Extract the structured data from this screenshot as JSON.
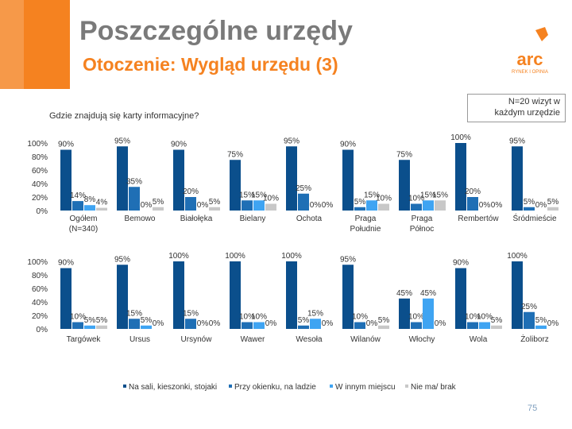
{
  "header": {
    "title": "Poszczególne urzędy",
    "subtitle": "Otoczenie: Wygląd urzędu (3)",
    "logo_text": "arc",
    "logo_subtext": "RYNEK I OPINIA"
  },
  "note": {
    "line1": "N=20 wizyt w",
    "line2": "każdym urzędzie"
  },
  "question": "Gdzie znajdują się karty informacyjne?",
  "page_number": "75",
  "colors": {
    "header_gray": "#7a7a7a",
    "orange": "#f58220",
    "dark_blue": "#0b4f8c",
    "medium_blue": "#1f6fb5",
    "light_blue": "#3fa4f2",
    "gray_bar": "#c8c8c8"
  },
  "chart_data": {
    "type": "bar",
    "yticks": [
      "100%",
      "80%",
      "60%",
      "40%",
      "20%",
      "0%"
    ],
    "ylim": [
      0,
      100
    ],
    "series": [
      {
        "name": "Na sali, kieszonki, stojaki"
      },
      {
        "name": "Przy okienku, na ladzie"
      },
      {
        "name": "W innym miejscu"
      },
      {
        "name": "Nie ma/ brak"
      }
    ],
    "rows": [
      {
        "groups": [
          {
            "label": "Ogółem\n(N=340)",
            "values": [
              90,
              14,
              8,
              4
            ],
            "labels": [
              "90%",
              "14%",
              "8%",
              "4%"
            ]
          },
          {
            "label": "Bemowo",
            "values": [
              95,
              35,
              0,
              5
            ],
            "labels": [
              "95%",
              "35%",
              "0%",
              "5%"
            ]
          },
          {
            "label": "Białołęka",
            "values": [
              90,
              20,
              0,
              5
            ],
            "labels": [
              "90%",
              "20%",
              "0%",
              "5%"
            ]
          },
          {
            "label": "Bielany",
            "values": [
              75,
              15,
              15,
              10
            ],
            "labels": [
              "75%",
              "15%",
              "15%",
              "10%"
            ]
          },
          {
            "label": "Ochota",
            "values": [
              95,
              25,
              0,
              0
            ],
            "labels": [
              "95%",
              "25%",
              "0%",
              "0%"
            ]
          },
          {
            "label": "Praga\nPołudnie",
            "values": [
              90,
              5,
              15,
              10
            ],
            "labels": [
              "90%",
              "5%",
              "15%",
              "10%"
            ]
          },
          {
            "label": "Praga\nPółnoc",
            "values": [
              75,
              10,
              15,
              15
            ],
            "labels": [
              "75%",
              "10%",
              "15%",
              "15%"
            ]
          },
          {
            "label": "Rembertów",
            "values": [
              100,
              20,
              0,
              0
            ],
            "labels": [
              "100%",
              "20%",
              "0%",
              "0%"
            ]
          },
          {
            "label": "Śródmieście",
            "values": [
              95,
              5,
              0,
              5
            ],
            "labels": [
              "95%",
              "5%",
              "0%",
              "5%"
            ]
          }
        ]
      },
      {
        "groups": [
          {
            "label": "Targówek",
            "values": [
              90,
              10,
              5,
              5
            ],
            "labels": [
              "90%",
              "10%",
              "5%",
              "5%"
            ]
          },
          {
            "label": "Ursus",
            "values": [
              95,
              15,
              5,
              0
            ],
            "labels": [
              "95%",
              "15%",
              "5%",
              "0%"
            ]
          },
          {
            "label": "Ursynów",
            "values": [
              100,
              15,
              0,
              0
            ],
            "labels": [
              "100%",
              "15%",
              "0%",
              "0%"
            ]
          },
          {
            "label": "Wawer",
            "values": [
              100,
              10,
              10,
              0
            ],
            "labels": [
              "100%",
              "10%",
              "10%",
              "0%"
            ]
          },
          {
            "label": "Wesoła",
            "values": [
              100,
              5,
              15,
              0
            ],
            "labels": [
              "100%",
              "5%",
              "15%",
              "0%"
            ]
          },
          {
            "label": "Wilanów",
            "values": [
              95,
              10,
              0,
              5
            ],
            "labels": [
              "95%",
              "10%",
              "0%",
              "5%"
            ]
          },
          {
            "label": "Włochy",
            "values": [
              45,
              10,
              45,
              0
            ],
            "labels": [
              "45%",
              "10%",
              "45%",
              "0%"
            ]
          },
          {
            "label": "Wola",
            "values": [
              90,
              10,
              10,
              5
            ],
            "labels": [
              "90%",
              "10%",
              "10%",
              "5%"
            ]
          },
          {
            "label": "Żoliborz",
            "values": [
              100,
              25,
              5,
              0
            ],
            "labels": [
              "100%",
              "25%",
              "5%",
              "0%"
            ]
          }
        ]
      }
    ],
    "legend_position": "bottom"
  }
}
